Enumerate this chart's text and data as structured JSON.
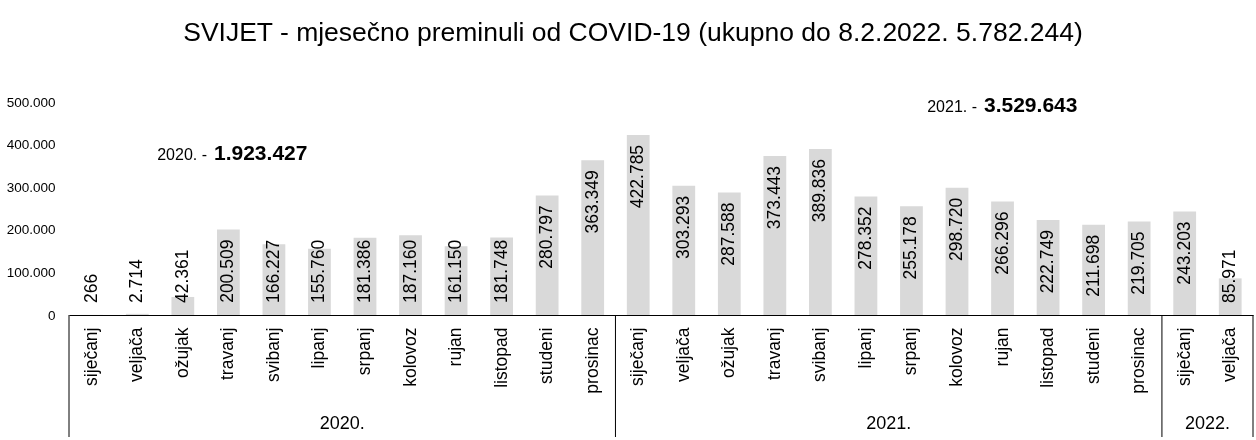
{
  "chart_data": {
    "type": "bar",
    "title": "SVIJET - mjesečno preminuli od COVID-19 (ukupno do 8.2.2022. 5.782.244)",
    "categories": [
      "siječanj",
      "veljača",
      "ožujak",
      "travanj",
      "svibanj",
      "lipanj",
      "srpanj",
      "kolovoz",
      "rujan",
      "listopad",
      "studeni",
      "prosinac",
      "siječanj",
      "veljača",
      "ožujak",
      "travanj",
      "svibanj",
      "lipanj",
      "srpanj",
      "kolovoz",
      "rujan",
      "listopad",
      "studeni",
      "prosinac",
      "siječanj",
      "veljača"
    ],
    "values": [
      266,
      2714,
      42361,
      200509,
      166227,
      155760,
      181386,
      187160,
      161150,
      181748,
      280797,
      363349,
      422785,
      303293,
      287588,
      373443,
      389836,
      278352,
      255178,
      298720,
      266296,
      222749,
      211698,
      219705,
      243203,
      85971
    ],
    "value_labels": [
      "266",
      "2.714",
      "42.361",
      "200.509",
      "166.227",
      "155.760",
      "181.386",
      "187.160",
      "161.150",
      "181.748",
      "280.797",
      "363.349",
      "422.785",
      "303.293",
      "287.588",
      "373.443",
      "389.836",
      "278.352",
      "255.178",
      "298.720",
      "266.296",
      "222.749",
      "211.698",
      "219.705",
      "243.203",
      "85.971"
    ],
    "color": "#d9d9d9",
    "ylim": [
      0,
      500000
    ],
    "yticks": [
      0,
      {
        "value": 100000,
        "label": "100.000"
      },
      {
        "value": 200000,
        "label": "200.000"
      },
      {
        "value": 300000,
        "label": "300.000"
      },
      {
        "value": 400000,
        "label": "400.000"
      },
      {
        "value": 500000,
        "label": "500.000"
      }
    ],
    "annotations": [
      "2020. -",
      "1.923.427",
      "2021. -",
      "3.529.643",
      "2020.",
      "2021.",
      "2022."
    ]
  }
}
